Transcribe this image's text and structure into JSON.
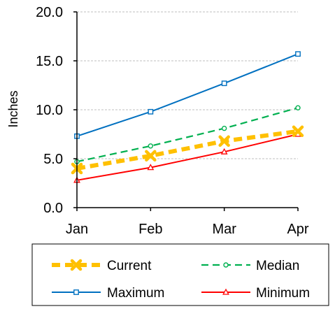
{
  "chart_data": {
    "type": "line",
    "categories": [
      "Jan",
      "Feb",
      "Mar",
      "Apr"
    ],
    "ylabel": "Inches",
    "ylim": [
      0,
      20
    ],
    "yticks": [
      "0.0",
      "5.0",
      "10.0",
      "15.0",
      "20.0"
    ],
    "grid": "horizontal dashed",
    "legend_placement": "bottom",
    "series": [
      {
        "name": "Current",
        "values": [
          4.0,
          5.3,
          6.8,
          7.8
        ],
        "color": "#FFC000",
        "marker": "x",
        "style": "dashed-thick"
      },
      {
        "name": "Median",
        "values": [
          4.7,
          6.3,
          8.1,
          10.2
        ],
        "color": "#00B050",
        "marker": "circle",
        "style": "dashed"
      },
      {
        "name": "Maximum",
        "values": [
          7.3,
          9.8,
          12.7,
          15.7
        ],
        "color": "#0070C0",
        "marker": "square",
        "style": "solid"
      },
      {
        "name": "Minimum",
        "values": [
          2.8,
          4.1,
          5.7,
          7.5
        ],
        "color": "#FF0000",
        "marker": "triangle",
        "style": "solid"
      }
    ]
  }
}
